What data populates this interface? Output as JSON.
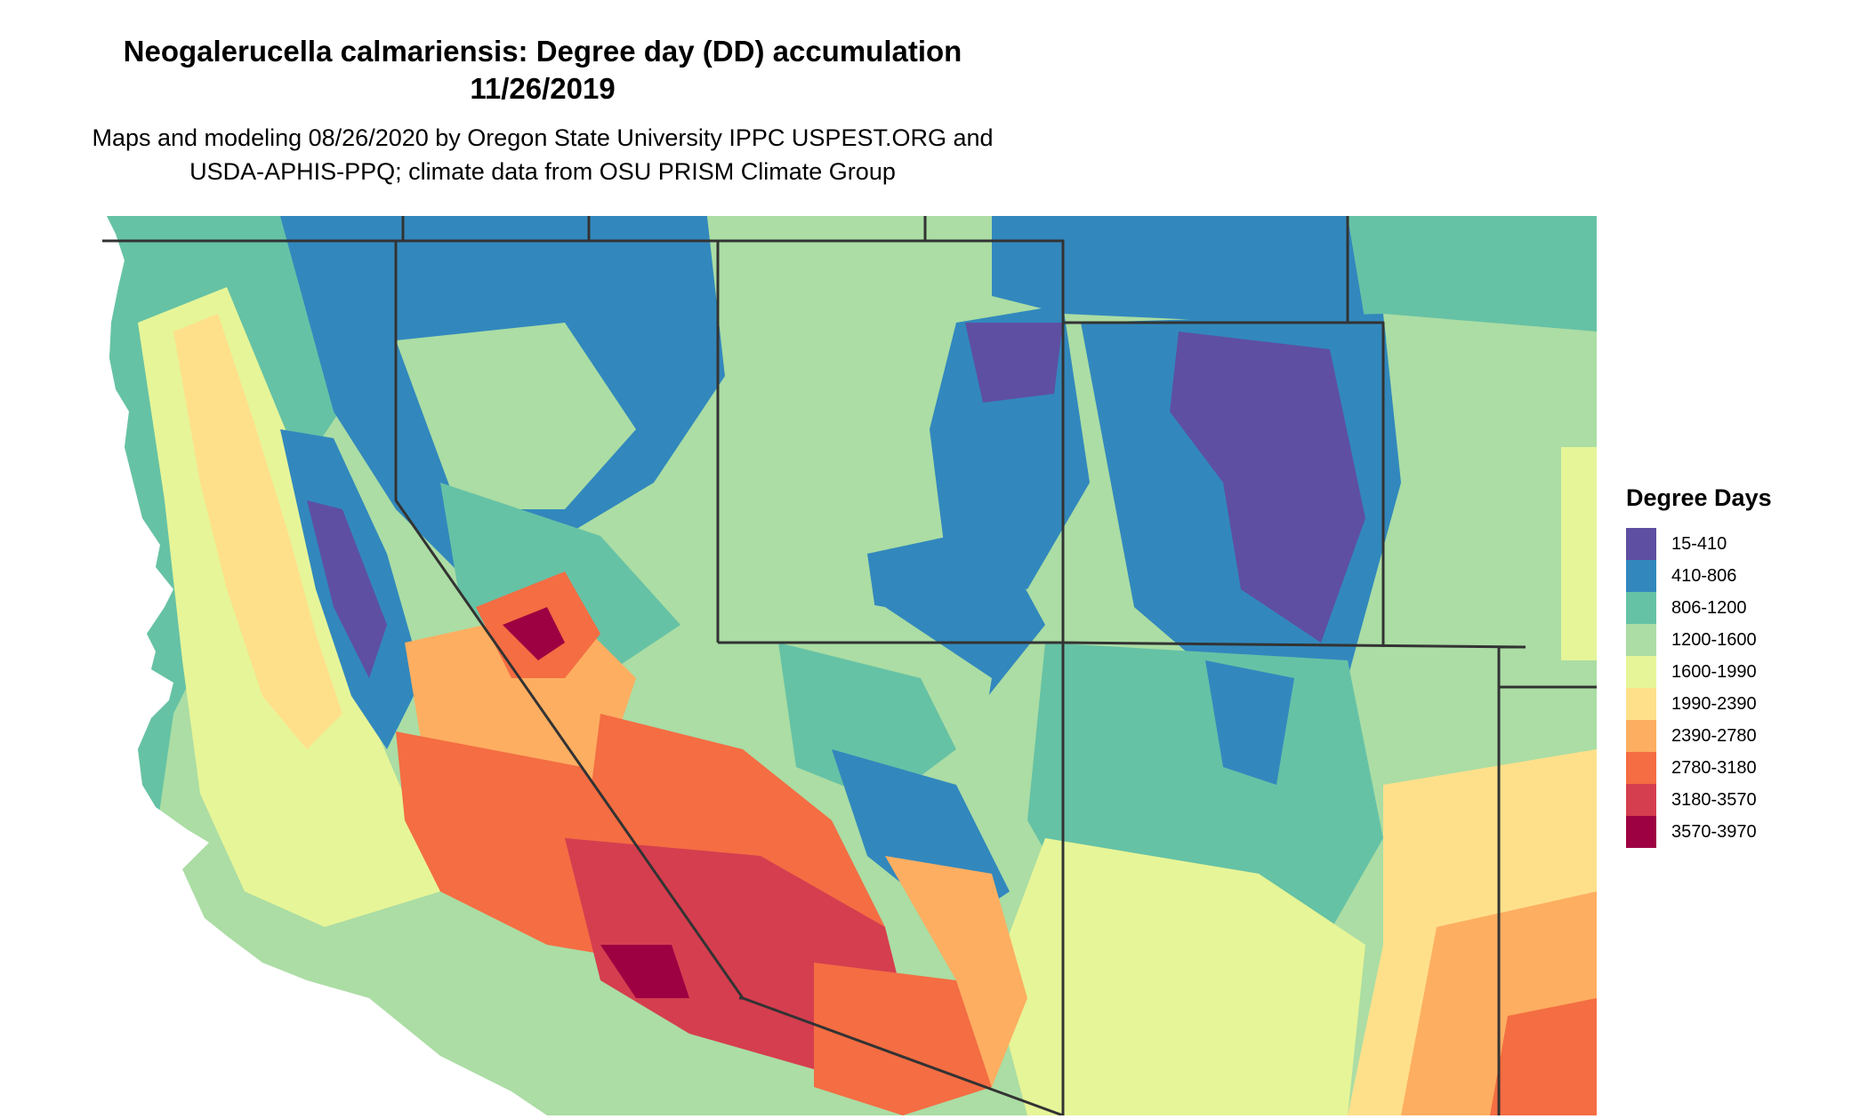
{
  "title_line1": "Neogalerucella calmariensis: Degree day (DD) accumulation",
  "title_line2": "11/26/2019",
  "subtitle_line1": "Maps and modeling 08/26/2020 by Oregon State University IPPC USPEST.ORG and",
  "subtitle_line2": "USDA-APHIS-PPQ; climate data from OSU PRISM Climate Group",
  "legend": {
    "title": "Degree Days",
    "items": [
      {
        "label": "15-410",
        "color": "#5e4fa2"
      },
      {
        "label": "410-806",
        "color": "#3288bd"
      },
      {
        "label": "806-1200",
        "color": "#66c2a5"
      },
      {
        "label": "1200-1600",
        "color": "#abdda4"
      },
      {
        "label": "1600-1990",
        "color": "#e6f598"
      },
      {
        "label": "1990-2390",
        "color": "#fee08b"
      },
      {
        "label": "2390-2780",
        "color": "#fdae61"
      },
      {
        "label": "2780-3180",
        "color": "#f46d43"
      },
      {
        "label": "3180-3570",
        "color": "#d53e4f"
      },
      {
        "label": "3570-3970",
        "color": "#9e0142"
      }
    ]
  },
  "colors": {
    "border": "#333333",
    "ocean": "#ffffff"
  }
}
